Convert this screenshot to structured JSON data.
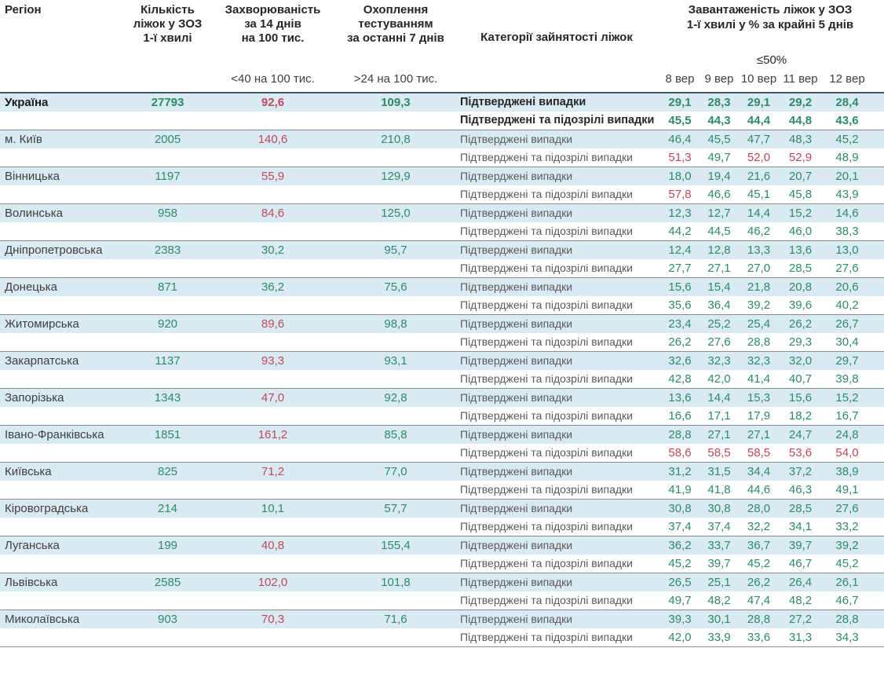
{
  "header": {
    "region": "Регіон",
    "beds": "Кількість\nліжок у ЗОЗ\n1-ї хвилі",
    "incidence": "Захворюваність\nза 14 днів\nна 100 тис.",
    "testing": "Охоплення\nтестуванням\nза останні 7 днів",
    "categories": "Категорії зайнятості ліжок",
    "occupancy_title": "Завантаженість ліжок у ЗОЗ\n1-ї хвилі у % за крайні 5 днів",
    "occupancy_threshold": "≤50%",
    "incidence_threshold": "<40 на 100 тис.",
    "testing_threshold": ">24 на 100 тис.",
    "days": [
      "8 вер",
      "9 вер",
      "10 вер",
      "11 вер",
      "12 вер"
    ]
  },
  "row_labels": {
    "confirmed": "Підтверджені випадки",
    "confirmed_suspected": "Підтверджені та підозрілі випадки"
  },
  "colors": {
    "green": "#2e8b67",
    "red": "#c0495a"
  },
  "thresholds": {
    "incidence_red_at_or_above": 40,
    "occupancy_red_above": 50,
    "testing_green_above": 24
  },
  "regions": [
    {
      "name": "Україна",
      "bold": true,
      "beds": "27793",
      "incidence": "92,6",
      "testing": "109,3",
      "confirmed": [
        "29,1",
        "28,3",
        "29,1",
        "29,2",
        "28,4"
      ],
      "suspected": [
        "45,5",
        "44,3",
        "44,4",
        "44,8",
        "43,6"
      ]
    },
    {
      "name": "м. Київ",
      "bold": false,
      "beds": "2005",
      "incidence": "140,6",
      "testing": "210,8",
      "confirmed": [
        "46,4",
        "45,5",
        "47,7",
        "48,3",
        "45,2"
      ],
      "suspected": [
        "51,3",
        "49,7",
        "52,0",
        "52,9",
        "48,9"
      ]
    },
    {
      "name": "Вінницька",
      "bold": false,
      "beds": "1197",
      "incidence": "55,9",
      "testing": "129,9",
      "confirmed": [
        "18,0",
        "19,4",
        "21,6",
        "20,7",
        "20,1"
      ],
      "suspected": [
        "57,8",
        "46,6",
        "45,1",
        "45,8",
        "43,9"
      ]
    },
    {
      "name": "Волинська",
      "bold": false,
      "beds": "958",
      "incidence": "84,6",
      "testing": "125,0",
      "confirmed": [
        "12,3",
        "12,7",
        "14,4",
        "15,2",
        "14,6"
      ],
      "suspected": [
        "44,2",
        "44,5",
        "46,2",
        "46,0",
        "38,3"
      ]
    },
    {
      "name": "Дніпропетровська",
      "bold": false,
      "beds": "2383",
      "incidence": "30,2",
      "testing": "95,7",
      "confirmed": [
        "12,4",
        "12,8",
        "13,3",
        "13,6",
        "13,0"
      ],
      "suspected": [
        "27,7",
        "27,1",
        "27,0",
        "28,5",
        "27,6"
      ]
    },
    {
      "name": "Донецька",
      "bold": false,
      "beds": "871",
      "incidence": "36,2",
      "testing": "75,6",
      "confirmed": [
        "15,6",
        "15,4",
        "21,8",
        "20,8",
        "20,6"
      ],
      "suspected": [
        "35,6",
        "36,4",
        "39,2",
        "39,6",
        "40,2"
      ]
    },
    {
      "name": "Житомирська",
      "bold": false,
      "beds": "920",
      "incidence": "89,6",
      "testing": "98,8",
      "confirmed": [
        "23,4",
        "25,2",
        "25,4",
        "26,2",
        "26,7"
      ],
      "suspected": [
        "26,2",
        "27,6",
        "28,8",
        "29,3",
        "30,4"
      ]
    },
    {
      "name": "Закарпатська",
      "bold": false,
      "beds": "1137",
      "incidence": "93,3",
      "testing": "93,1",
      "confirmed": [
        "32,6",
        "32,3",
        "32,3",
        "32,0",
        "29,7"
      ],
      "suspected": [
        "42,8",
        "42,0",
        "41,4",
        "40,7",
        "39,8"
      ]
    },
    {
      "name": "Запорізька",
      "bold": false,
      "beds": "1343",
      "incidence": "47,0",
      "testing": "92,8",
      "confirmed": [
        "13,6",
        "14,4",
        "15,3",
        "15,6",
        "15,2"
      ],
      "suspected": [
        "16,6",
        "17,1",
        "17,9",
        "18,2",
        "16,7"
      ]
    },
    {
      "name": "Івано-Франківська",
      "bold": false,
      "beds": "1851",
      "incidence": "161,2",
      "testing": "85,8",
      "confirmed": [
        "28,8",
        "27,1",
        "27,1",
        "24,7",
        "24,8"
      ],
      "suspected": [
        "58,6",
        "58,5",
        "58,5",
        "53,6",
        "54,0"
      ]
    },
    {
      "name": "Київська",
      "bold": false,
      "beds": "825",
      "incidence": "71,2",
      "testing": "77,0",
      "confirmed": [
        "31,2",
        "31,5",
        "34,4",
        "37,2",
        "38,9"
      ],
      "suspected": [
        "41,9",
        "41,8",
        "44,6",
        "46,3",
        "49,1"
      ]
    },
    {
      "name": "Кіровоградська",
      "bold": false,
      "beds": "214",
      "incidence": "10,1",
      "testing": "57,7",
      "confirmed": [
        "30,8",
        "30,8",
        "28,0",
        "28,5",
        "27,6"
      ],
      "suspected": [
        "37,4",
        "37,4",
        "32,2",
        "34,1",
        "33,2"
      ]
    },
    {
      "name": "Луганська",
      "bold": false,
      "beds": "199",
      "incidence": "40,8",
      "testing": "155,4",
      "confirmed": [
        "36,2",
        "33,7",
        "36,7",
        "39,7",
        "39,2"
      ],
      "suspected": [
        "45,2",
        "39,7",
        "45,2",
        "46,7",
        "45,2"
      ]
    },
    {
      "name": "Львівська",
      "bold": false,
      "beds": "2585",
      "incidence": "102,0",
      "testing": "101,8",
      "confirmed": [
        "26,5",
        "25,1",
        "26,2",
        "26,4",
        "26,1"
      ],
      "suspected": [
        "49,7",
        "48,2",
        "47,4",
        "48,2",
        "46,7"
      ]
    },
    {
      "name": "Миколаївська",
      "bold": false,
      "beds": "903",
      "incidence": "70,3",
      "testing": "71,6",
      "confirmed": [
        "39,3",
        "30,1",
        "28,8",
        "27,2",
        "28,8"
      ],
      "suspected": [
        "42,0",
        "33,9",
        "33,6",
        "31,3",
        "34,3"
      ]
    }
  ]
}
